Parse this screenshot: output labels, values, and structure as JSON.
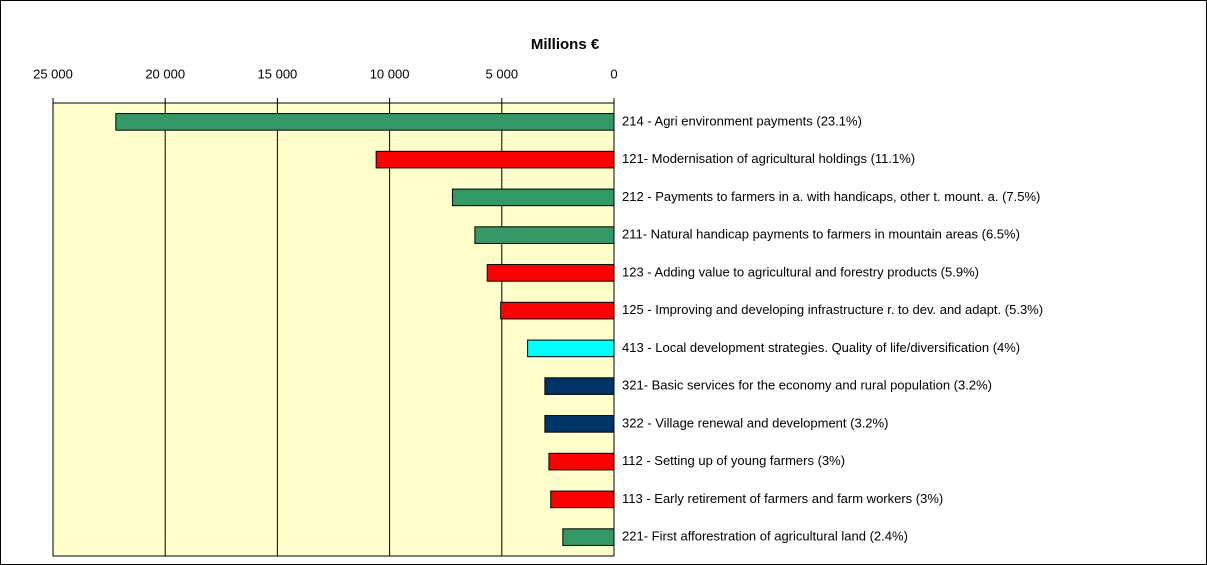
{
  "chart_data": {
    "type": "hbar",
    "title": "Millions €",
    "categories": [
      "214 - Agri environment payments (23.1%)",
      "121- Modernisation of agricultural holdings (11.1%)",
      "212 - Payments to farmers in a. with handicaps, other t. mount. a. (7.5%)",
      "211- Natural handicap payments to farmers in mountain areas (6.5%)",
      "123 - Adding value to agricultural and forestry products (5.9%)",
      "125 - Improving and developing infrastructure r. to dev. and adapt. (5.3%)",
      "413 - Local development strategies. Quality of life/diversification (4%)",
      "321- Basic services for the economy and rural population (3.2%)",
      "322 - Village renewal and development (3.2%)",
      "112 - Setting up of young farmers (3%)",
      "113 - Early retirement of farmers and farm workers (3%)",
      "221- First afforestration of agricultural land (2.4%)"
    ],
    "values": [
      22200,
      10600,
      7200,
      6200,
      5650,
      5050,
      3850,
      3080,
      3080,
      2900,
      2820,
      2280
    ],
    "colors": [
      "#339966",
      "#ff0000",
      "#339966",
      "#339966",
      "#ff0000",
      "#ff0000",
      "#00ffff",
      "#003366",
      "#003366",
      "#ff0000",
      "#ff0000",
      "#339966"
    ],
    "xlim": [
      0,
      25000
    ],
    "x_reversed": true,
    "xticks": [
      {
        "value": 25000,
        "label": "25 000"
      },
      {
        "value": 20000,
        "label": "20 000"
      },
      {
        "value": 15000,
        "label": "15 000"
      },
      {
        "value": 10000,
        "label": "10 000"
      },
      {
        "value": 5000,
        "label": "5 000"
      },
      0
    ],
    "grid": true,
    "plot_background": "#ffffcc"
  }
}
